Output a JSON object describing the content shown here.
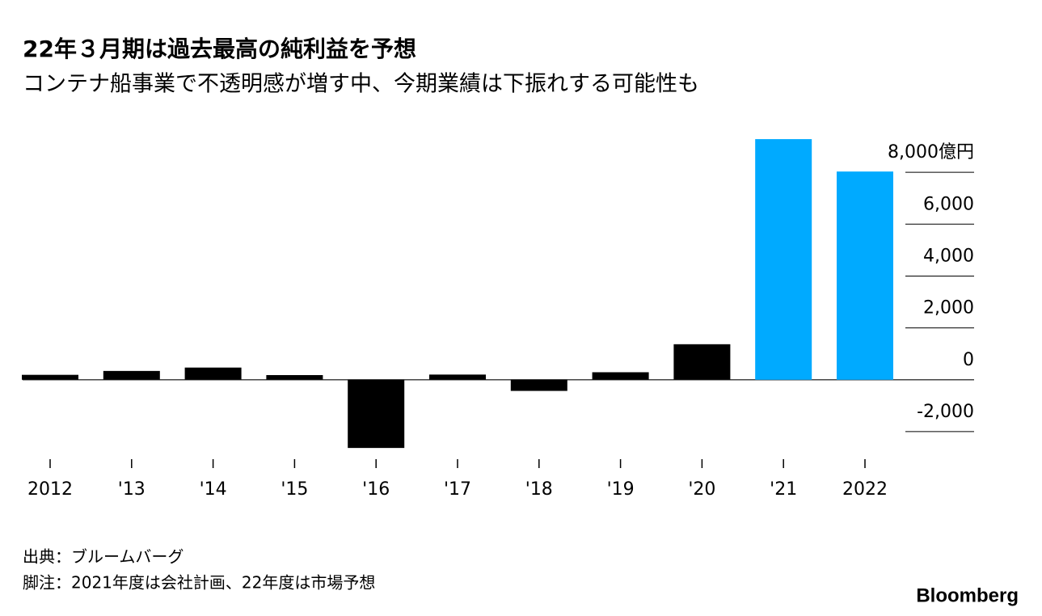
{
  "chart_data": {
    "type": "bar",
    "title": "22年３月期は過去最高の純利益を予想",
    "subtitle": "コンテナ船事業で不透明感が増す中、今期業績は下振れする可能性も",
    "categories": [
      "2012",
      "'13",
      "'14",
      "'15",
      "'16",
      "'17",
      "'18",
      "'19",
      "'20",
      "'21",
      "2022"
    ],
    "values": [
      190,
      340,
      470,
      180,
      -2630,
      200,
      -430,
      290,
      1370,
      9280,
      8030
    ],
    "colors": [
      "#000000",
      "#000000",
      "#000000",
      "#000000",
      "#000000",
      "#000000",
      "#000000",
      "#000000",
      "#000000",
      "#00aaff",
      "#00aaff"
    ],
    "ylim": [
      -3000,
      10000
    ],
    "yticks": [
      {
        "value": 8000,
        "label": "8,000億円"
      },
      {
        "value": 6000,
        "label": "6,000"
      },
      {
        "value": 4000,
        "label": "4,000"
      },
      {
        "value": 2000,
        "label": "2,000"
      },
      0,
      {
        "value": -2000,
        "label": "-2,000"
      }
    ],
    "source": "出典：ブルームバーグ",
    "note": "脚注：2021年度は会社計画、22年度は市場予想",
    "brand": "Bloomberg"
  }
}
